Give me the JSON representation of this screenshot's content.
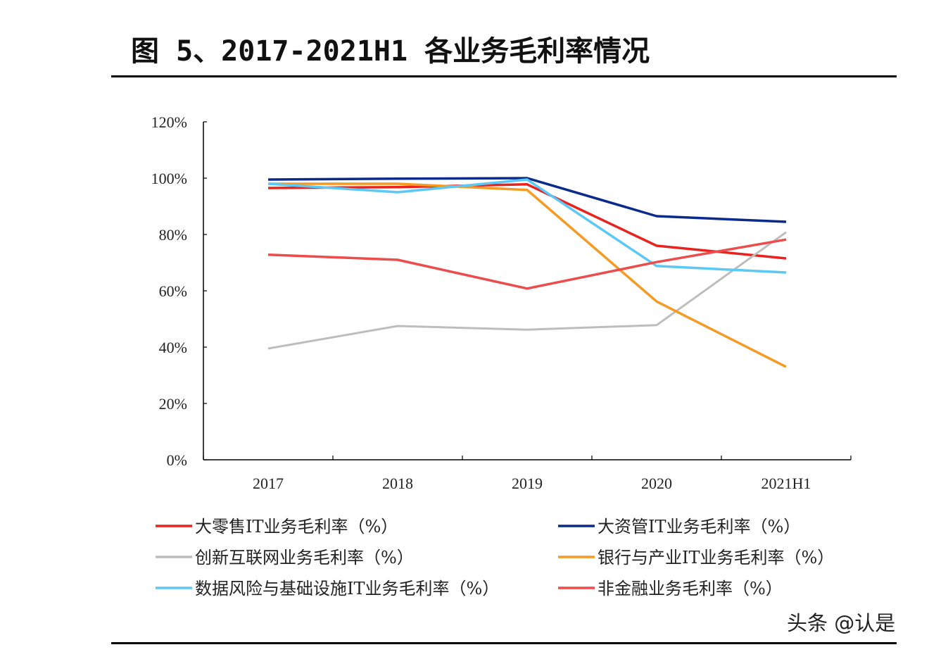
{
  "title": "图 5、2017-2021H1 各业务毛利率情况",
  "watermark": "头条 @认是",
  "chart_data": {
    "type": "line",
    "title": "图 5、2017-2021H1 各业务毛利率情况",
    "categories": [
      "2017",
      "2018",
      "2019",
      "2020",
      "2021H1"
    ],
    "ylim": [
      0,
      120
    ],
    "yticks": [
      "0%",
      "20%",
      "40%",
      "60%",
      "80%",
      "100%",
      "120%"
    ],
    "grid": false,
    "legend_placement": "bottom",
    "series": [
      {
        "name": "大零售IT业务毛利率（%）",
        "color": "#e8231e",
        "values": [
          96.5,
          96.8,
          97.8,
          76,
          71.5
        ]
      },
      {
        "name": "大资管IT业务毛利率（%）",
        "color": "#0a2a8c",
        "values": [
          99.5,
          99.8,
          100,
          86.5,
          84.5
        ]
      },
      {
        "name": "创新互联网业务毛利率（%）",
        "color": "#bdbdbd",
        "values": [
          39.5,
          47.5,
          46.2,
          47.8,
          80.8
        ]
      },
      {
        "name": "银行与产业IT业务毛利率（%）",
        "color": "#f59a23",
        "values": [
          98,
          98,
          95.8,
          56.2,
          33
        ]
      },
      {
        "name": "数据风险与基础设施IT业务毛利率（%）",
        "color": "#5bc8f5",
        "values": [
          98,
          95,
          99.5,
          68.8,
          66.5
        ]
      },
      {
        "name": "非金融业务毛利率（%）",
        "color": "#ec4c4c",
        "values": [
          72.8,
          71,
          60.8,
          70.2,
          78.2
        ]
      }
    ]
  }
}
